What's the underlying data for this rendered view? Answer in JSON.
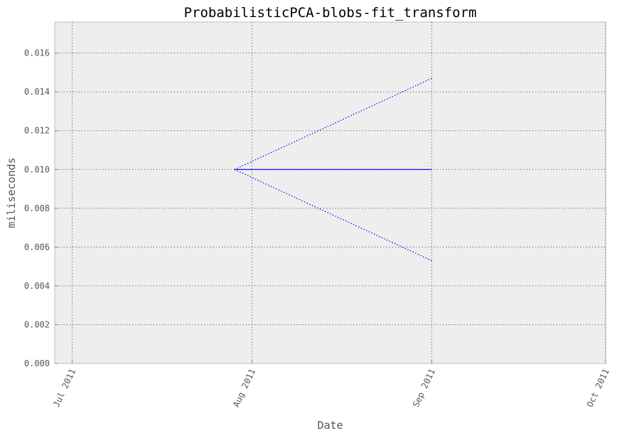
{
  "chart_data": {
    "type": "line",
    "title": "ProbabilisticPCA-blobs-fit_transform",
    "xlabel": "Date",
    "ylabel": "miliseconds",
    "xlim": [
      "2011-06-28",
      "2011-10-01"
    ],
    "ylim": [
      0,
      0.0176
    ],
    "x_ticks": [
      {
        "value": "2011-07-01",
        "label": "Jul 2011"
      },
      {
        "value": "2011-08-01",
        "label": "Aug 2011"
      },
      {
        "value": "2011-09-01",
        "label": "Sep 2011"
      },
      {
        "value": "2011-10-01",
        "label": "Oct 2011"
      }
    ],
    "y_ticks": [
      {
        "value": 0.0,
        "label": "0.000"
      },
      {
        "value": 0.002,
        "label": "0.002"
      },
      {
        "value": 0.004,
        "label": "0.004"
      },
      {
        "value": 0.006,
        "label": "0.006"
      },
      {
        "value": 0.008,
        "label": "0.008"
      },
      {
        "value": 0.01,
        "label": "0.010"
      },
      {
        "value": 0.012,
        "label": "0.012"
      },
      {
        "value": 0.014,
        "label": "0.014"
      },
      {
        "value": 0.016,
        "label": "0.016"
      }
    ],
    "grid": true,
    "series": [
      {
        "x": [
          "2011-07-29",
          "2011-09-01"
        ],
        "values": [
          0.01,
          0.01
        ],
        "style": "solid",
        "color": "#0000ff"
      },
      {
        "x": [
          "2011-07-29",
          "2011-09-01"
        ],
        "values": [
          0.01,
          0.0147
        ],
        "style": "dotted",
        "color": "#0000ff"
      },
      {
        "x": [
          "2011-07-29",
          "2011-09-01"
        ],
        "values": [
          0.01,
          0.0053
        ],
        "style": "dotted",
        "color": "#0000ff"
      }
    ]
  }
}
